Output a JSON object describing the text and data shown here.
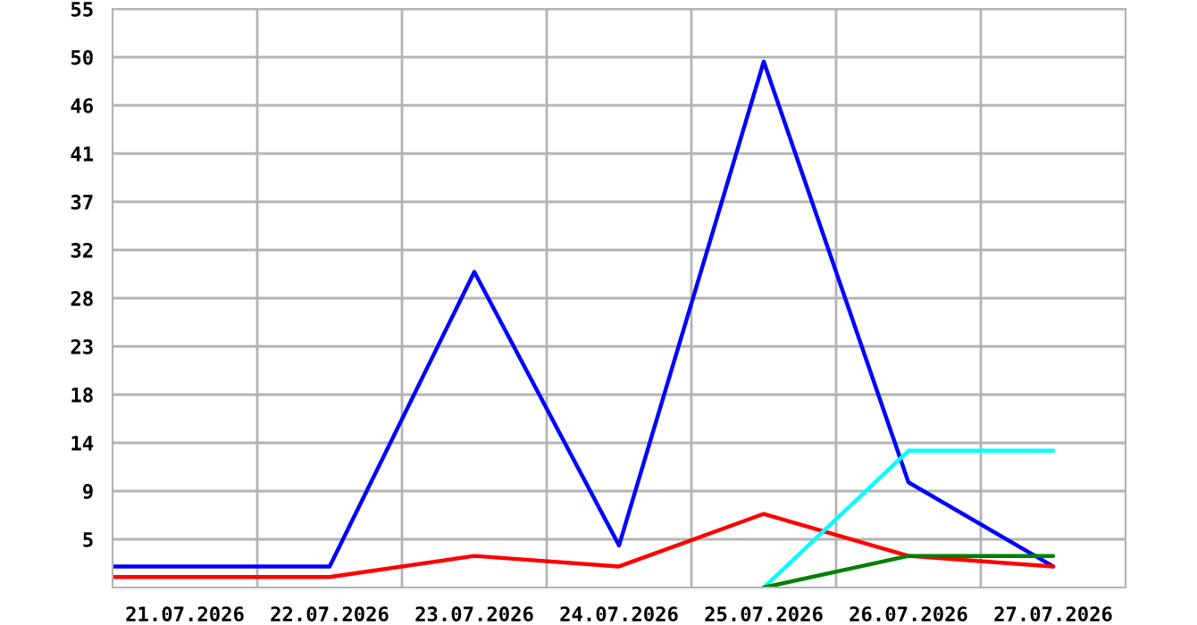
{
  "chart_data": {
    "type": "line",
    "x": [
      "2026-07-20T12:00",
      "2026-07-21",
      "2026-07-22",
      "2026-07-23",
      "2026-07-24",
      "2026-07-25",
      "2026-07-26",
      "2026-07-27"
    ],
    "series": [
      {
        "color": "#0000ff",
        "values": [
          2,
          2,
          2,
          30,
          4,
          50,
          10,
          2
        ]
      },
      {
        "color": "#ff0000",
        "values": [
          1,
          1,
          1,
          3,
          2,
          7,
          3,
          2
        ]
      },
      {
        "color": "#00ffff",
        "values": [
          null,
          null,
          null,
          null,
          null,
          0,
          13,
          13
        ]
      },
      {
        "color": "#008000",
        "values": [
          null,
          null,
          null,
          null,
          null,
          0,
          3,
          3
        ]
      }
    ],
    "xlim": [
      "2026-07-20T12:00",
      "2026-07-27T12:00"
    ],
    "xticks": [
      {
        "value": "2026-07-21",
        "label": "21.07.2026"
      },
      {
        "value": "2026-07-21T12:00",
        "label": null
      },
      {
        "value": "2026-07-22",
        "label": "22.07.2026"
      },
      {
        "value": "2026-07-22T12:00",
        "label": null
      },
      {
        "value": "2026-07-23",
        "label": "23.07.2026"
      },
      {
        "value": "2026-07-23T12:00",
        "label": null
      },
      {
        "value": "2026-07-24",
        "label": "24.07.2026"
      },
      {
        "value": "2026-07-24T12:00",
        "label": null
      },
      {
        "value": "2026-07-25",
        "label": "25.07.2026"
      },
      {
        "value": "2026-07-25T12:00",
        "label": null
      },
      {
        "value": "2026-07-26",
        "label": "26.07.2026"
      },
      {
        "value": "2026-07-26T12:00",
        "label": null
      },
      {
        "value": "2026-07-27",
        "label": "27.07.2026"
      }
    ],
    "ylim": [
      0,
      55
    ],
    "yticks": [
      {
        "value": 4.583,
        "label": "5"
      },
      {
        "value": 9.167,
        "label": "9"
      },
      {
        "value": 13.75,
        "label": "14"
      },
      {
        "value": 18.333,
        "label": "18"
      },
      {
        "value": 22.917,
        "label": "23"
      },
      {
        "value": 27.5,
        "label": "28"
      },
      {
        "value": 32.083,
        "label": "32"
      },
      {
        "value": 36.667,
        "label": "37"
      },
      {
        "value": 41.25,
        "label": "41"
      },
      {
        "value": 45.833,
        "label": "46"
      },
      {
        "value": 50.417,
        "label": "50"
      },
      {
        "value": 55,
        "label": "55"
      }
    ],
    "grid": true,
    "marker": "none",
    "line_style": "solid"
  }
}
